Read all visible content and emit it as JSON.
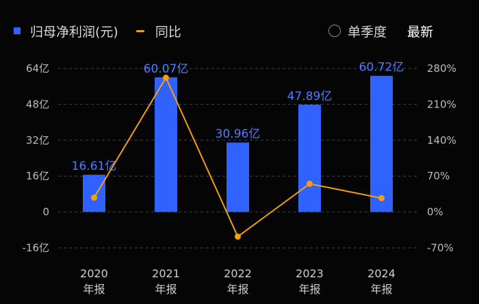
{
  "legend": {
    "bar_label": "归母净利润(元)",
    "line_label": "同比"
  },
  "controls": {
    "quarterly_label": "单季度",
    "latest_label": "最新"
  },
  "colors": {
    "bar": "#2f62ff",
    "line": "#f5a00a",
    "data_label": "#4f7dff",
    "background": "#050505"
  },
  "chart_data": {
    "type": "bar",
    "categories": [
      [
        "2020",
        "年报"
      ],
      [
        "2021",
        "年报"
      ],
      [
        "2022",
        "年报"
      ],
      [
        "2023",
        "年报"
      ],
      [
        "2024",
        "年报"
      ]
    ],
    "series": [
      {
        "name": "归母净利润(元)",
        "type": "bar",
        "axis": "left",
        "values": [
          16.61,
          60.07,
          30.96,
          47.89,
          60.72
        ],
        "labels": [
          "16.61亿",
          "60.07亿",
          "30.96亿",
          "47.89亿",
          "60.72亿"
        ]
      },
      {
        "name": "同比",
        "type": "line",
        "axis": "right",
        "values": [
          28,
          262,
          -48,
          55,
          27
        ]
      }
    ],
    "left_axis": {
      "ticks": [
        64,
        48,
        32,
        16,
        0,
        -16
      ],
      "tick_labels": [
        "64亿",
        "48亿",
        "32亿",
        "16亿",
        "0",
        "-16亿"
      ],
      "ylim": [
        -16,
        64
      ]
    },
    "right_axis": {
      "ticks": [
        280,
        210,
        140,
        70,
        0,
        -70
      ],
      "tick_labels": [
        "280%",
        "210%",
        "140%",
        "70%",
        "0%",
        "-70%"
      ],
      "ylim": [
        -70,
        280
      ]
    },
    "grid": "dashed horizontal"
  }
}
